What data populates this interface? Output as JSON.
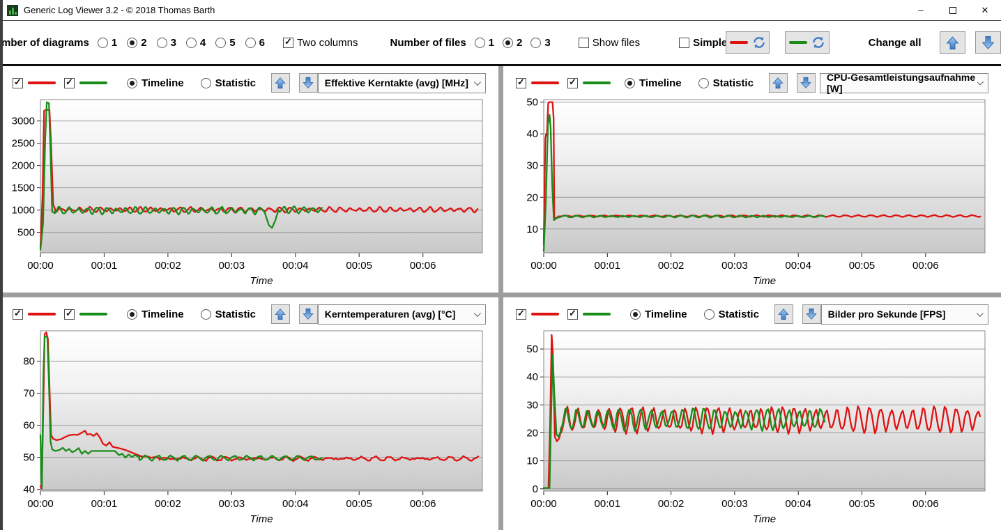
{
  "window": {
    "title": "Generic Log Viewer 3.2 - © 2018 Thomas Barth",
    "minimize_glyph": "–",
    "close_glyph": "✕"
  },
  "toolbar": {
    "diagrams_label": "Number of diagrams",
    "diagram_options": [
      "1",
      "2",
      "3",
      "4",
      "5",
      "6"
    ],
    "diagrams_selected": "2",
    "two_columns_label": "Two columns",
    "two_columns_checked": true,
    "files_label": "Number of files",
    "file_options": [
      "1",
      "2",
      "3"
    ],
    "files_selected": "2",
    "show_files_label": "Show files",
    "show_files_checked": false,
    "simple_label": "Simple",
    "simple_checked": false,
    "change_all_label": "Change all",
    "red_color": "#df1212",
    "green_color": "#1a8c1a",
    "arrow_blue": "#5796d6"
  },
  "panels": [
    {
      "red_checked": true,
      "green_checked": true,
      "view_mode": "Timeline",
      "timeline_label": "Timeline",
      "statistic_label": "Statistic",
      "dropdown_value": "Effektive Kerntakte (avg) [MHz]"
    },
    {
      "red_checked": true,
      "green_checked": true,
      "view_mode": "Timeline",
      "timeline_label": "Timeline",
      "statistic_label": "Statistic",
      "dropdown_value": "CPU-Gesamtleistungsaufnahme [W]"
    },
    {
      "red_checked": true,
      "green_checked": true,
      "view_mode": "Timeline",
      "timeline_label": "Timeline",
      "statistic_label": "Statistic",
      "dropdown_value": "Kerntemperaturen (avg) [°C]"
    },
    {
      "red_checked": true,
      "green_checked": true,
      "view_mode": "Timeline",
      "timeline_label": "Timeline",
      "statistic_label": "Statistic",
      "dropdown_value": "Bilder pro Sekunde [FPS]"
    }
  ],
  "chart_data": [
    {
      "type": "line",
      "title": "Effektive Kerntakte (avg) [MHz]",
      "xlabel": "Time",
      "ylim": [
        40,
        3480
      ],
      "yticks": [
        500,
        1000,
        1500,
        2000,
        2500,
        3000
      ],
      "xmax": 416,
      "xticks": [
        {
          "t": 0,
          "label": "00:00"
        },
        {
          "t": 60,
          "label": "00:01"
        },
        {
          "t": 120,
          "label": "00:02"
        },
        {
          "t": 180,
          "label": "00:03"
        },
        {
          "t": 240,
          "label": "00:04"
        },
        {
          "t": 300,
          "label": "00:05"
        },
        {
          "t": 360,
          "label": "00:06"
        }
      ],
      "series": [
        {
          "name": "red",
          "color": "#df1212",
          "segments": [
            {
              "type": "points",
              "pts": [
                [
                  0,
                  150
                ],
                [
                  2,
                  1300
                ],
                [
                  3.5,
                  3230
                ],
                [
                  6,
                  3255
                ],
                [
                  8.5,
                  3240
                ],
                [
                  10,
                  2500
                ],
                [
                  12,
                  1120
                ],
                [
                  14,
                  1010
                ]
              ]
            },
            {
              "type": "osc",
              "t0": 14,
              "t1": 412,
              "base": 1008,
              "amp": 42,
              "period": 9.4,
              "jitter": 26,
              "seed": 2
            }
          ]
        },
        {
          "name": "green",
          "color": "#1a8c1a",
          "segments": [
            {
              "type": "points",
              "pts": [
                [
                  0,
                  110
                ],
                [
                  2.5,
                  700
                ],
                [
                  4.5,
                  2600
                ],
                [
                  6,
                  3420
                ],
                [
                  8,
                  3400
                ],
                [
                  9.5,
                  2300
                ],
                [
                  11,
                  960
                ],
                [
                  13,
                  950
                ]
              ]
            },
            {
              "type": "osc",
              "t0": 13,
              "t1": 209,
              "base": 988,
              "amp": 62,
              "period": 9,
              "jitter": 30,
              "seed": 5
            },
            {
              "type": "points",
              "pts": [
                [
                  211,
                  950
                ],
                [
                  215,
                  660
                ],
                [
                  218,
                  600
                ],
                [
                  221,
                  760
                ],
                [
                  224,
                  1000
                ]
              ]
            },
            {
              "type": "osc",
              "t0": 225,
              "t1": 263,
              "base": 1005,
              "amp": 65,
              "period": 9,
              "jitter": 25,
              "seed": 7
            },
            {
              "type": "points",
              "pts": [
                [
                  265,
                  1050
                ]
              ]
            }
          ]
        }
      ]
    },
    {
      "type": "line",
      "title": "CPU-Gesamtleistungsaufnahme [W]",
      "xlabel": "Time",
      "ylim": [
        2.5,
        50.8
      ],
      "yticks": [
        10,
        20,
        30,
        40,
        50
      ],
      "xmax": 416,
      "xticks": [
        {
          "t": 0,
          "label": "00:00"
        },
        {
          "t": 60,
          "label": "00:01"
        },
        {
          "t": 120,
          "label": "00:02"
        },
        {
          "t": 180,
          "label": "00:03"
        },
        {
          "t": 240,
          "label": "00:04"
        },
        {
          "t": 300,
          "label": "00:05"
        },
        {
          "t": 360,
          "label": "00:06"
        }
      ],
      "series": [
        {
          "name": "red",
          "color": "#df1212",
          "segments": [
            {
              "type": "points",
              "pts": [
                [
                  0,
                  5
                ],
                [
                  1.5,
                  38.5
                ],
                [
                  2.3,
                  40
                ],
                [
                  3,
                  39.5
                ],
                [
                  4.2,
                  49.5
                ],
                [
                  5,
                  50
                ],
                [
                  8.3,
                  50
                ],
                [
                  9.3,
                  45
                ],
                [
                  10,
                  13.2
                ],
                [
                  12,
                  13.6
                ],
                [
                  14,
                  13.9
                ]
              ]
            },
            {
              "type": "osc",
              "t0": 14,
              "t1": 412,
              "base": 14.1,
              "amp": 0.2,
              "period": 12,
              "jitter": 0.12,
              "seed": 1
            }
          ]
        },
        {
          "name": "green",
          "color": "#1a8c1a",
          "segments": [
            {
              "type": "points",
              "pts": [
                [
                  0,
                  3
                ],
                [
                  2,
                  18
                ],
                [
                  4,
                  43
                ],
                [
                  5.5,
                  46
                ],
                [
                  6.5,
                  42
                ],
                [
                  8,
                  24
                ],
                [
                  9.5,
                  12.8
                ],
                [
                  12,
                  13.4
                ],
                [
                  14,
                  13.7
                ]
              ]
            },
            {
              "type": "osc",
              "t0": 14,
              "t1": 263,
              "base": 13.95,
              "amp": 0.25,
              "period": 11,
              "jitter": 0.12,
              "seed": 3
            },
            {
              "type": "points",
              "pts": [
                [
                  265,
                  14
                ]
              ]
            }
          ]
        }
      ]
    },
    {
      "type": "line",
      "title": "Kerntemperaturen (avg) [°C]",
      "xlabel": "Time",
      "ylim": [
        39.5,
        89.5
      ],
      "yticks": [
        40,
        50,
        60,
        70,
        80
      ],
      "xmax": 416,
      "xticks": [
        {
          "t": 0,
          "label": "00:00"
        },
        {
          "t": 60,
          "label": "00:01"
        },
        {
          "t": 120,
          "label": "00:02"
        },
        {
          "t": 180,
          "label": "00:03"
        },
        {
          "t": 240,
          "label": "00:04"
        },
        {
          "t": 300,
          "label": "00:05"
        },
        {
          "t": 360,
          "label": "00:06"
        }
      ],
      "series": [
        {
          "name": "red",
          "color": "#df1212",
          "segments": [
            {
              "type": "points",
              "pts": [
                [
                  0,
                  41
                ],
                [
                  1.2,
                  40.2
                ],
                [
                  2.5,
                  62
                ],
                [
                  4,
                  88.5
                ],
                [
                  5.5,
                  89
                ],
                [
                  7,
                  87
                ],
                [
                  8.5,
                  72
                ],
                [
                  10,
                  57
                ],
                [
                  12,
                  55.8
                ],
                [
                  15,
                  55.4
                ],
                [
                  19,
                  55.6
                ],
                [
                  23,
                  56.3
                ],
                [
                  27,
                  56.9
                ],
                [
                  31,
                  57.1
                ],
                [
                  35,
                  57
                ],
                [
                  39,
                  57.7
                ],
                [
                  42,
                  58.3
                ],
                [
                  44,
                  57.1
                ],
                [
                  47,
                  57.3
                ],
                [
                  50,
                  56.7
                ],
                [
                  53,
                  57.5
                ],
                [
                  56,
                  56.2
                ],
                [
                  59,
                  54.2
                ],
                [
                  62,
                  53.7
                ],
                [
                  65,
                  54.7
                ],
                [
                  68,
                  53.3
                ],
                [
                  72,
                  53
                ],
                [
                  76,
                  52.7
                ],
                [
                  80,
                  52.3
                ],
                [
                  84,
                  51.8
                ],
                [
                  88,
                  51.2
                ],
                [
                  92,
                  50.7
                ],
                [
                  96,
                  50.2
                ],
                [
                  100,
                  50.4
                ],
                [
                  104,
                  49.9
                ],
                [
                  108,
                  50.1
                ],
                [
                  112,
                  49.7
                ]
              ]
            },
            {
              "type": "osc",
              "t0": 112,
              "t1": 412,
              "base": 49.6,
              "amp": 0.4,
              "period": 14,
              "jitter": 0.45,
              "seed": 4
            }
          ]
        },
        {
          "name": "green",
          "color": "#1a8c1a",
          "segments": [
            {
              "type": "points",
              "pts": [
                [
                  0,
                  57
                ],
                [
                  0.7,
                  45
                ],
                [
                  1.4,
                  40.5
                ],
                [
                  2.8,
                  76
                ],
                [
                  4,
                  87.8
                ],
                [
                  6.5,
                  87.5
                ],
                [
                  8,
                  73
                ],
                [
                  9.5,
                  55
                ],
                [
                  11,
                  52.5
                ],
                [
                  14,
                  52
                ],
                [
                  18,
                  52.3
                ],
                [
                  21,
                  53
                ],
                [
                  24,
                  52
                ],
                [
                  27,
                  52.6
                ],
                [
                  30,
                  51.6
                ],
                [
                  33,
                  52.1
                ],
                [
                  36,
                  52.9
                ],
                [
                  39,
                  51.1
                ],
                [
                  42,
                  52
                ],
                [
                  45,
                  51.1
                ],
                [
                  48,
                  52
                ],
                [
                  52,
                  52
                ],
                [
                  58,
                  52
                ],
                [
                  64,
                  52
                ],
                [
                  70,
                  52
                ],
                [
                  74,
                  50.7
                ],
                [
                  77,
                  51.1
                ],
                [
                  80,
                  49.9
                ],
                [
                  83,
                  50.9
                ],
                [
                  86,
                  50.1
                ],
                [
                  89,
                  50.7
                ],
                [
                  93,
                  50.1
                ]
              ]
            },
            {
              "type": "osc",
              "t0": 93,
              "t1": 263,
              "base": 49.8,
              "amp": 0.5,
              "period": 12,
              "jitter": 0.4,
              "seed": 6
            },
            {
              "type": "points",
              "pts": [
                [
                  265,
                  49.8
                ]
              ]
            }
          ]
        }
      ]
    },
    {
      "type": "line",
      "title": "Bilder pro Sekunde [FPS]",
      "xlabel": "Time",
      "ylim": [
        -0.8,
        56.5
      ],
      "yticks": [
        0,
        10,
        20,
        30,
        40,
        50
      ],
      "xmax": 416,
      "xticks": [
        {
          "t": 0,
          "label": "00:00"
        },
        {
          "t": 60,
          "label": "00:01"
        },
        {
          "t": 120,
          "label": "00:02"
        },
        {
          "t": 180,
          "label": "00:03"
        },
        {
          "t": 240,
          "label": "00:04"
        },
        {
          "t": 300,
          "label": "00:05"
        },
        {
          "t": 360,
          "label": "00:06"
        }
      ],
      "series": [
        {
          "name": "red",
          "color": "#df1212",
          "segments": [
            {
              "type": "points",
              "pts": [
                [
                  0,
                  0.3
                ],
                [
                  4.5,
                  0.3
                ],
                [
                  6,
                  22
                ],
                [
                  7.5,
                  55
                ],
                [
                  8.7,
                  48
                ],
                [
                  10.5,
                  18.5
                ],
                [
                  12.5,
                  17
                ],
                [
                  14.5,
                  18
                ],
                [
                  16.5,
                  21
                ]
              ]
            },
            {
              "type": "osc",
              "t0": 16.5,
              "t1": 412,
              "base": 24.7,
              "amp": 3.9,
              "period": 10.2,
              "jitter": 1.3,
              "seed": 8
            }
          ]
        },
        {
          "name": "green",
          "color": "#1a8c1a",
          "segments": [
            {
              "type": "points",
              "pts": [
                [
                  0,
                  0.3
                ],
                [
                  5.5,
                  0.3
                ],
                [
                  7,
                  27
                ],
                [
                  8.5,
                  48
                ],
                [
                  10,
                  34
                ],
                [
                  12,
                  19.5
                ],
                [
                  14,
                  18.6
                ],
                [
                  16,
                  20.5
                ]
              ]
            },
            {
              "type": "osc",
              "t0": 16,
              "t1": 263,
              "base": 24.9,
              "amp": 3.3,
              "period": 10,
              "jitter": 1,
              "seed": 9
            },
            {
              "type": "points",
              "pts": [
                [
                  265,
                  24
                ]
              ]
            }
          ]
        }
      ]
    }
  ]
}
